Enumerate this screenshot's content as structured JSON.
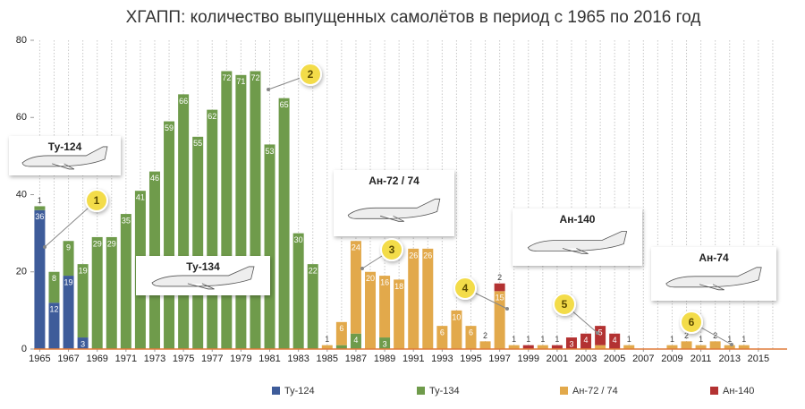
{
  "chart_data": {
    "type": "bar",
    "stacked": true,
    "title": "ХГАПП: количество выпущенных самолётов в период с 1965 по 2016 год",
    "x": [
      1965,
      1966,
      1967,
      1968,
      1969,
      1970,
      1971,
      1972,
      1973,
      1974,
      1975,
      1976,
      1977,
      1978,
      1979,
      1980,
      1981,
      1982,
      1983,
      1984,
      1985,
      1986,
      1987,
      1988,
      1989,
      1990,
      1991,
      1992,
      1993,
      1994,
      1995,
      1996,
      1997,
      1998,
      1999,
      2000,
      2001,
      2002,
      2003,
      2004,
      2005,
      2006,
      2007,
      2008,
      2009,
      2010,
      2011,
      2012,
      2013,
      2014,
      2015,
      2016
    ],
    "xlim": [
      1964.6,
      2017
    ],
    "xticks": [
      1965,
      1967,
      1969,
      1971,
      1973,
      1975,
      1977,
      1979,
      1981,
      1983,
      1985,
      1987,
      1989,
      1991,
      1993,
      1995,
      1997,
      1999,
      2001,
      2003,
      2005,
      2007,
      2009,
      2011,
      2013,
      2015
    ],
    "ylim": [
      0,
      80
    ],
    "yticks": [
      0,
      20,
      40,
      60,
      80
    ],
    "grid": true,
    "legend": "bottom",
    "series": [
      {
        "name": "Ту-124",
        "color": "#3e5c9a",
        "values": [
          36,
          12,
          19,
          3,
          null,
          null,
          null,
          null,
          null,
          null,
          null,
          null,
          null,
          null,
          null,
          null,
          null,
          null,
          null,
          null,
          null,
          null,
          null,
          null,
          null,
          null,
          null,
          null,
          null,
          null,
          null,
          null,
          null,
          null,
          null,
          null,
          null,
          null,
          null,
          null,
          null,
          null,
          null,
          null,
          null,
          null,
          null,
          null,
          null,
          null,
          null,
          null
        ]
      },
      {
        "name": "Ту-134",
        "color": "#6f9b4b",
        "values": [
          1,
          8,
          9,
          19,
          29,
          29,
          35,
          41,
          46,
          59,
          66,
          55,
          62,
          72,
          71,
          72,
          53,
          65,
          30,
          22,
          null,
          1,
          4,
          null,
          3,
          null,
          null,
          null,
          null,
          null,
          null,
          null,
          null,
          null,
          null,
          null,
          null,
          null,
          null,
          null,
          null,
          null,
          null,
          null,
          null,
          null,
          null,
          null,
          null,
          null,
          null,
          null
        ]
      },
      {
        "name": "Ан-72 / 74",
        "color": "#e2a94b",
        "values": [
          null,
          null,
          null,
          null,
          null,
          null,
          null,
          null,
          null,
          null,
          null,
          null,
          null,
          null,
          null,
          null,
          null,
          null,
          null,
          null,
          1,
          6,
          24,
          20,
          16,
          18,
          26,
          26,
          6,
          10,
          6,
          2,
          15,
          1,
          null,
          1,
          null,
          null,
          null,
          1,
          null,
          1,
          null,
          null,
          1,
          2,
          1,
          2,
          1,
          1,
          null,
          null
        ]
      },
      {
        "name": "Ан-140",
        "color": "#b33232",
        "values": [
          null,
          null,
          null,
          null,
          null,
          null,
          null,
          null,
          null,
          null,
          null,
          null,
          null,
          null,
          null,
          null,
          null,
          null,
          null,
          null,
          null,
          null,
          null,
          null,
          null,
          null,
          null,
          null,
          null,
          null,
          null,
          null,
          2,
          null,
          1,
          null,
          1,
          3,
          4,
          5,
          4,
          null,
          null,
          null,
          null,
          null,
          null,
          null,
          null,
          null,
          null,
          null
        ]
      }
    ],
    "annotations": [
      "1",
      "2",
      "3",
      "4",
      "5",
      "6"
    ],
    "aircraft_labels": [
      "Ту-124",
      "Ту-134",
      "Ан-72 / 74",
      "Ан-140",
      "Ан-74"
    ]
  }
}
